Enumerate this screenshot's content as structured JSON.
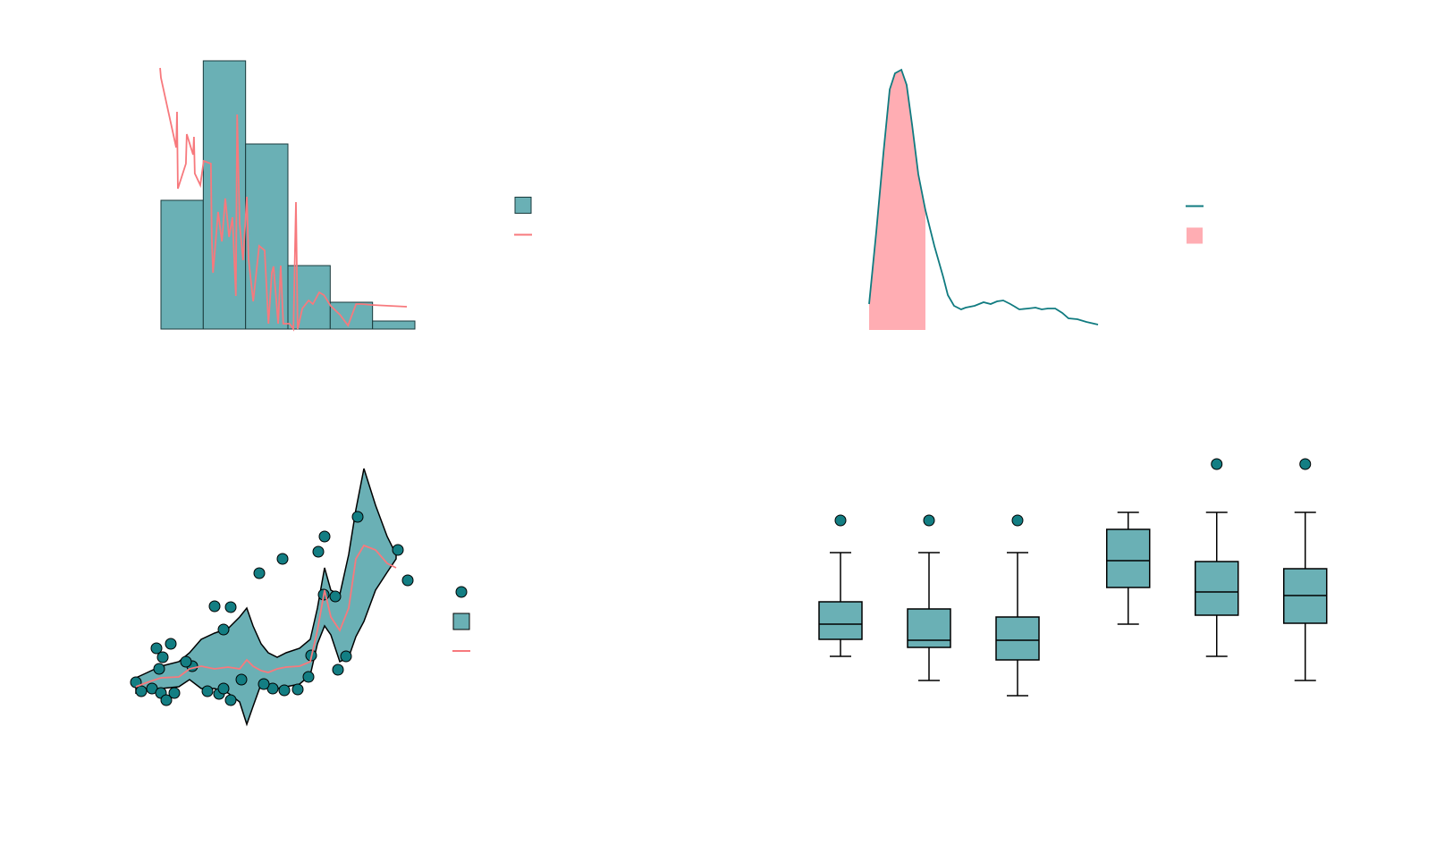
{
  "chart_data": [
    {
      "type": "histogram",
      "bins": [
        0,
        1,
        2,
        3,
        4,
        5,
        6
      ],
      "counts": [
        144,
        300,
        207,
        71,
        30,
        9
      ],
      "color": "#6ab0b5",
      "edgecolor": "#1a3a3c",
      "line": {
        "color": "#f7797d",
        "x": [
          -0.02,
          0,
          0.36,
          0.38,
          0.4,
          0.59,
          0.61,
          0.76,
          0.78,
          0.8,
          0.93,
          1.01,
          1.18,
          1.2,
          1.23,
          1.35,
          1.44,
          1.52,
          1.61,
          1.69,
          1.77,
          1.8,
          1.86,
          1.94,
          2.03,
          2.07,
          2.18,
          2.32,
          2.45,
          2.54,
          2.62,
          2.66,
          2.77,
          2.83,
          2.89,
          3.04,
          3.13,
          3.19,
          3.23,
          3.34,
          3.49,
          3.59,
          3.74,
          3.85,
          4.01,
          4.23,
          4.42,
          4.61,
          4.75,
          4.97,
          5.81
        ],
        "values": [
          292,
          281,
          203,
          243,
          157,
          185,
          218,
          195,
          215,
          174,
          161,
          188,
          185,
          103,
          63,
          131,
          98,
          146,
          103,
          125,
          37,
          240,
          118,
          77,
          148,
          78,
          31,
          93,
          88,
          6,
          63,
          70,
          6,
          71,
          6,
          6,
          0,
          142,
          0,
          23,
          32,
          28,
          41,
          38,
          26,
          16,
          4,
          28,
          28,
          27,
          25
        ]
      },
      "xlim": [
        0,
        6
      ],
      "ylim": [
        0,
        300
      ],
      "legend": "right"
    },
    {
      "type": "density",
      "x": [
        0,
        0.31,
        0.63,
        0.9,
        1.13,
        1.41,
        1.64,
        1.88,
        2.15,
        2.46,
        2.85,
        3.24,
        3.44,
        3.71,
        4.02,
        4.22,
        4.61,
        5.0,
        5.31,
        5.59,
        5.86,
        6.17,
        6.37,
        6.56,
        6.95,
        7.27,
        7.54,
        7.81,
        8.13,
        8.44,
        8.71,
        9.1,
        9.49,
        10.0
      ],
      "values": [
        29,
        109,
        199,
        269,
        287,
        291,
        274,
        229,
        174,
        134,
        94,
        59,
        39,
        27,
        23,
        25,
        27,
        31,
        29,
        32,
        33,
        29,
        26,
        23,
        24,
        25,
        23,
        24,
        24,
        19,
        13,
        12,
        9,
        6
      ],
      "color": "#107b80",
      "shade": [
        0,
        2.46
      ],
      "shade_color": "#ffadb3",
      "xlim": [
        0,
        10
      ],
      "ylim": [
        0,
        300
      ],
      "legend": "right"
    },
    {
      "type": "scatter",
      "points": {
        "color": "#137e83",
        "x": [
          2,
          8,
          25,
          32,
          41,
          28,
          20,
          30,
          36,
          45,
          90,
          108,
          100,
          82,
          95,
          108,
          100,
          140,
          166,
          206,
          213,
          250,
          295,
          306,
          228,
          237,
          225,
          212,
          183,
          168,
          155,
          195,
          198,
          145,
          120,
          65,
          58
        ],
        "y": [
          47,
          37,
          85,
          75,
          90,
          62,
          40,
          35,
          27,
          35,
          132,
          131,
          106,
          37,
          34,
          27,
          40,
          169,
          185,
          193,
          210,
          232,
          195,
          161,
          61,
          76,
          143,
          145,
          39,
          38,
          40,
          53,
          77,
          45,
          50,
          65,
          70
        ]
      },
      "band": {
        "color": "#6ab0b5",
        "x": [
          2,
          15,
          30,
          50,
          62,
          75,
          90,
          105,
          118,
          126,
          133,
          142,
          150,
          160,
          170,
          185,
          197,
          205,
          213,
          220,
          230,
          240,
          248,
          257,
          270,
          283,
          293
        ],
        "upper": [
          52,
          58,
          65,
          70,
          80,
          95,
          102,
          107,
          120,
          130,
          110,
          90,
          80,
          75,
          80,
          85,
          95,
          130,
          175,
          150,
          145,
          190,
          240,
          286,
          245,
          210,
          190
        ],
        "lower": [
          35,
          40,
          40,
          42,
          50,
          40,
          40,
          35,
          25,
          0,
          20,
          45,
          45,
          40,
          42,
          45,
          55,
          90,
          110,
          100,
          70,
          75,
          98,
          115,
          150,
          170,
          185
        ]
      },
      "line": {
        "color": "#f7797d",
        "values": [
          42,
          47,
          52,
          53,
          62,
          65,
          62,
          64,
          62,
          72,
          65,
          60,
          58,
          62,
          64,
          65,
          70,
          105,
          150,
          120,
          105,
          130,
          185,
          200,
          195,
          180,
          175
        ]
      },
      "xlim": [
        0,
        310
      ],
      "ylim": [
        0,
        300
      ],
      "legend": "right"
    },
    {
      "type": "box",
      "positions": [
        1,
        2,
        3,
        4.25,
        5.25,
        6.25
      ],
      "boxes": [
        {
          "whislo": 76,
          "q1": 95,
          "med": 112,
          "q3": 137,
          "whishi": 192,
          "fliers": [
            228
          ]
        },
        {
          "whislo": 49,
          "q1": 86,
          "med": 94,
          "q3": 129,
          "whishi": 192,
          "fliers": [
            228
          ]
        },
        {
          "whislo": 32,
          "q1": 72,
          "med": 94,
          "q3": 120,
          "whishi": 192,
          "fliers": [
            228
          ]
        },
        {
          "whislo": 112,
          "q1": 153,
          "med": 183,
          "q3": 218,
          "whishi": 237,
          "fliers": []
        },
        {
          "whislo": 76,
          "q1": 122,
          "med": 148,
          "q3": 182,
          "whishi": 237,
          "fliers": [
            291
          ]
        },
        {
          "whislo": 49,
          "q1": 113,
          "med": 144,
          "q3": 174,
          "whishi": 237,
          "fliers": [
            291
          ]
        }
      ],
      "color": "#6ab0b5",
      "flier_color": "#137e83",
      "xlim": [
        0.5,
        6.75
      ],
      "ylim": [
        0,
        300
      ]
    }
  ]
}
